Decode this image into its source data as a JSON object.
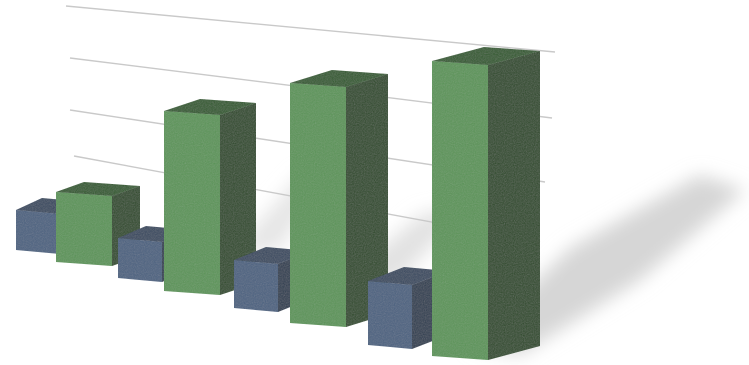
{
  "chart_data": {
    "type": "bar",
    "title": "",
    "xlabel": "",
    "ylabel": "",
    "categories": [
      "",
      "",
      "",
      ""
    ],
    "series": [
      {
        "values": [
          1.0,
          1.0,
          1.2,
          1.6
        ]
      },
      {
        "values": [
          1.4,
          3.6,
          4.8,
          5.9
        ]
      }
    ],
    "ylim": [
      0,
      6
    ],
    "grid": true,
    "legend": "none",
    "style": "3d-perspective",
    "colors": {
      "series_1_front": "#4a6180",
      "series_1_top": "#34475f",
      "series_1_side": "#2b3b50",
      "series_2_front": "#5a9457",
      "series_2_top": "#2f5a2c",
      "series_2_side": "#2a4a27",
      "grid": "#c9c9c9",
      "shadow": "#d6d6d6"
    }
  }
}
